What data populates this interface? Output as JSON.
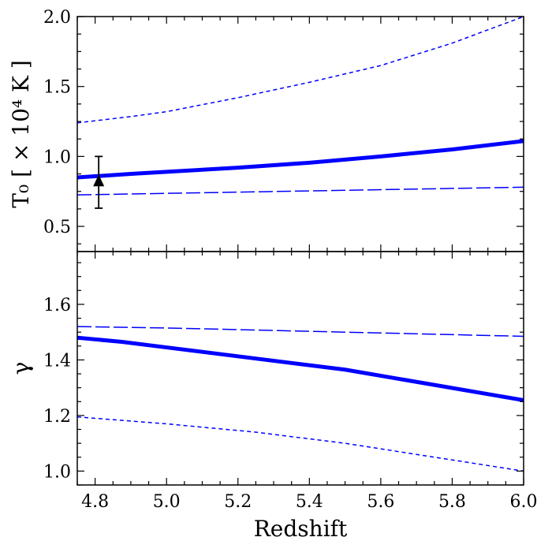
{
  "chart_data": [
    {
      "type": "line",
      "panel": "top",
      "ylabel": "T₀ [ × 10⁴ K ]",
      "xlim": [
        4.75,
        6.0
      ],
      "ylim": [
        0.32,
        2.0
      ],
      "yticks": [
        0.5,
        1.0,
        1.5,
        2.0
      ],
      "ytick_labels": [
        "0.5",
        "1.0",
        "1.5",
        "2.0"
      ],
      "xticks": [
        4.8,
        5.0,
        5.2,
        5.4,
        5.6,
        5.8,
        6.0
      ],
      "series": [
        {
          "style": "solid-thick",
          "color": "#0000ff",
          "x": [
            4.75,
            4.9,
            5.0,
            5.2,
            5.4,
            5.6,
            5.8,
            6.0
          ],
          "y": [
            0.85,
            0.875,
            0.89,
            0.92,
            0.955,
            1.0,
            1.05,
            1.11
          ]
        },
        {
          "style": "dashed-short",
          "color": "#0000ff",
          "x": [
            4.75,
            4.9,
            5.0,
            5.2,
            5.4,
            5.6,
            5.8,
            6.0
          ],
          "y": [
            1.24,
            1.285,
            1.32,
            1.42,
            1.53,
            1.65,
            1.81,
            2.0
          ]
        },
        {
          "style": "dashed-long",
          "color": "#0000ff",
          "x": [
            4.75,
            6.0
          ],
          "y": [
            0.725,
            0.78
          ]
        }
      ],
      "points": [
        {
          "x": 4.81,
          "y": 0.82,
          "yerr_low": 0.63,
          "yerr_high": 1.0,
          "marker": "triangle-up",
          "color": "#000000"
        }
      ]
    },
    {
      "type": "line",
      "panel": "bottom",
      "xlabel": "Redshift",
      "ylabel": "γ",
      "xlim": [
        4.75,
        6.0
      ],
      "ylim": [
        0.95,
        1.79
      ],
      "yticks": [
        1.0,
        1.2,
        1.4,
        1.6
      ],
      "ytick_labels": [
        "1.0",
        "1.2",
        "1.4",
        "1.6"
      ],
      "xticks": [
        4.8,
        5.0,
        5.2,
        5.4,
        5.6,
        5.8,
        6.0
      ],
      "xtick_labels": [
        "4.8",
        "5.0",
        "5.2",
        "5.4",
        "5.6",
        "5.8",
        "6.0"
      ],
      "series": [
        {
          "style": "solid-thick",
          "color": "#0000ff",
          "x": [
            4.75,
            4.875,
            5.0,
            5.25,
            5.5,
            5.75,
            6.0
          ],
          "y": [
            1.48,
            1.465,
            1.445,
            1.405,
            1.365,
            1.31,
            1.255
          ]
        },
        {
          "style": "dashed-long",
          "color": "#0000ff",
          "x": [
            4.75,
            5.0,
            5.5,
            6.0
          ],
          "y": [
            1.52,
            1.515,
            1.5,
            1.485
          ]
        },
        {
          "style": "dashed-short",
          "color": "#0000ff",
          "x": [
            4.75,
            5.0,
            5.25,
            5.5,
            5.75,
            6.0
          ],
          "y": [
            1.195,
            1.17,
            1.14,
            1.1,
            1.05,
            1.0
          ]
        }
      ]
    }
  ]
}
